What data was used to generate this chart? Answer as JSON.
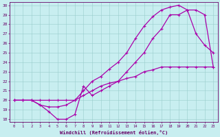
{
  "xlabel": "Windchill (Refroidissement éolien,°C)",
  "xlim": [
    -0.5,
    23.5
  ],
  "ylim": [
    17.7,
    30.3
  ],
  "xticks": [
    0,
    1,
    2,
    3,
    4,
    5,
    6,
    7,
    8,
    9,
    10,
    11,
    12,
    13,
    14,
    15,
    16,
    17,
    18,
    19,
    20,
    21,
    22,
    23
  ],
  "yticks": [
    18,
    19,
    20,
    21,
    22,
    23,
    24,
    25,
    26,
    27,
    28,
    29,
    30
  ],
  "bg_color": "#c8eef0",
  "line_color": "#aa00aa",
  "grid_color": "#99cccc",
  "line1_x": [
    0,
    1,
    2,
    3,
    4,
    5,
    6,
    7,
    8,
    9,
    10,
    11,
    12,
    13,
    14,
    15,
    16,
    17,
    18,
    19,
    20,
    21,
    22,
    23
  ],
  "line1_y": [
    20.0,
    20.0,
    20.0,
    20.0,
    20.0,
    20.0,
    20.0,
    20.0,
    20.5,
    21.0,
    21.5,
    21.8,
    22.0,
    22.3,
    22.5,
    23.0,
    23.2,
    23.5,
    23.5,
    23.5,
    23.5,
    23.5,
    23.5,
    23.5
  ],
  "line2_x": [
    0,
    1,
    2,
    3,
    4,
    5,
    6,
    7,
    8,
    9,
    10,
    11,
    12,
    13,
    14,
    15,
    16,
    17,
    18,
    19,
    20,
    21,
    22,
    23
  ],
  "line2_y": [
    20.0,
    20.0,
    20.0,
    19.5,
    18.8,
    18.0,
    18.0,
    18.5,
    21.5,
    20.5,
    21.0,
    21.5,
    22.0,
    23.0,
    24.0,
    25.0,
    26.5,
    27.5,
    29.0,
    29.0,
    29.5,
    29.5,
    29.0,
    23.5
  ],
  "line3_x": [
    0,
    1,
    2,
    3,
    4,
    5,
    6,
    7,
    8,
    9,
    10,
    11,
    12,
    13,
    14,
    15,
    16,
    17,
    18,
    19,
    20,
    21,
    22,
    23
  ],
  "line3_y": [
    20.0,
    20.0,
    20.0,
    19.5,
    19.3,
    19.3,
    19.5,
    20.0,
    21.0,
    22.0,
    22.5,
    23.3,
    24.0,
    25.0,
    26.5,
    27.8,
    28.8,
    29.5,
    29.8,
    30.0,
    29.5,
    27.0,
    25.8,
    25.0
  ]
}
